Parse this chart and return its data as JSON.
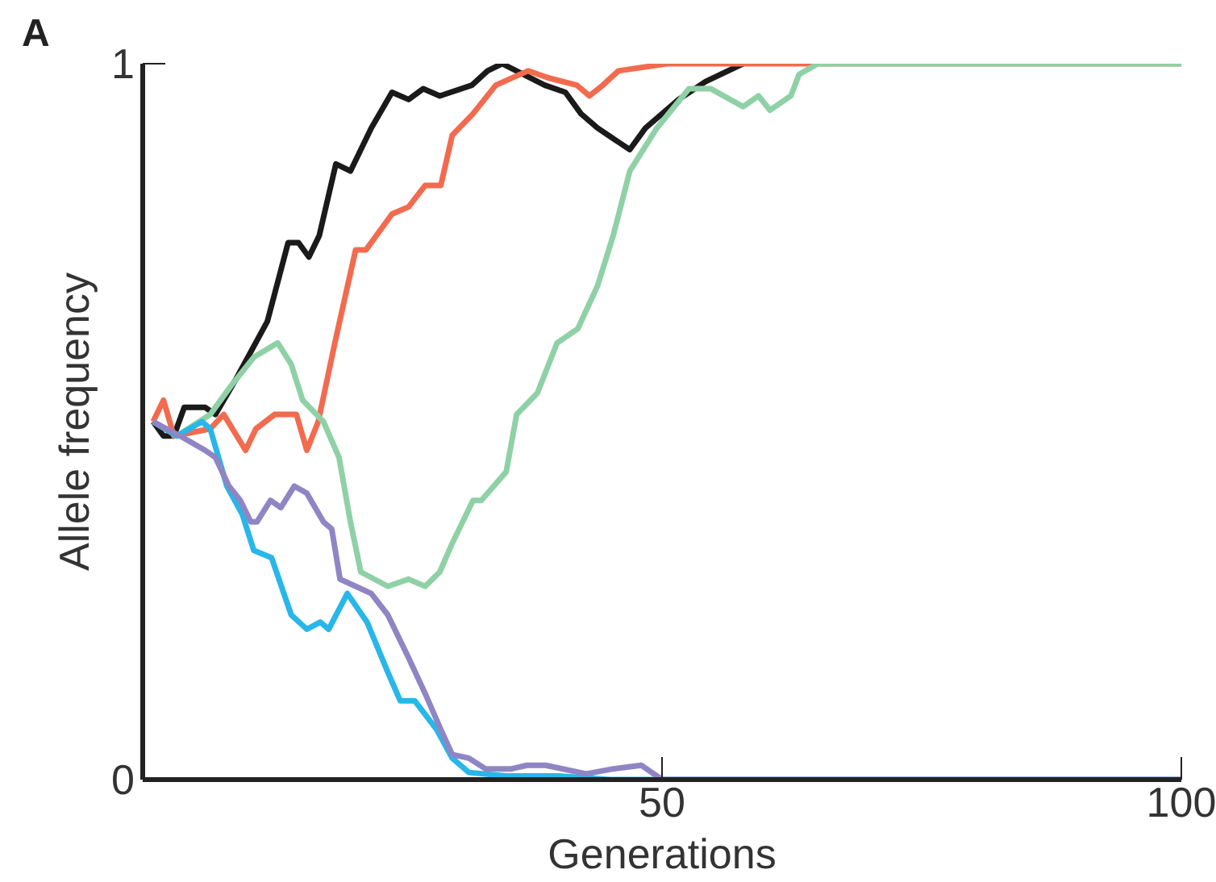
{
  "chart_data": {
    "type": "line",
    "title": "A",
    "xlabel": "Generations",
    "ylabel": "Allele frequency",
    "xlim": [
      0,
      100
    ],
    "ylim": [
      0,
      1
    ],
    "xticks": [
      50,
      100
    ],
    "yticks": [
      0,
      1
    ],
    "grid": false,
    "line_style": "solid",
    "series": [
      {
        "color": "#1a1a1a",
        "x": [
          1,
          2,
          3,
          4,
          6,
          7,
          9,
          12,
          14,
          15,
          16,
          17,
          18.6,
          20,
          22,
          24,
          25.6,
          27,
          28.6,
          31.7,
          33.2,
          34.6,
          38.7,
          40.7,
          42.2,
          43.8,
          46.9,
          48.4,
          51.6,
          54.2,
          57.8
        ],
        "values": [
          0.5,
          0.48,
          0.48,
          0.52,
          0.52,
          0.51,
          0.56,
          0.64,
          0.75,
          0.75,
          0.73,
          0.76,
          0.86,
          0.85,
          0.91,
          0.96,
          0.95,
          0.965,
          0.955,
          0.97,
          0.99,
          1.0,
          0.97,
          0.96,
          0.93,
          0.91,
          0.88,
          0.91,
          0.95,
          0.975,
          1.0
        ]
      },
      {
        "color": "#f26b4f",
        "x": [
          1,
          2,
          3,
          6.5,
          7.8,
          9.9,
          10.9,
          12.7,
          14.8,
          15.8,
          16.9,
          18.5,
          20.5,
          21.5,
          24,
          25.6,
          27.2,
          28.7,
          29.8,
          31.8,
          34,
          37.1,
          39.1,
          41.8,
          43,
          44.3,
          45.8,
          50.5,
          100
        ],
        "values": [
          0.5,
          0.53,
          0.48,
          0.49,
          0.51,
          0.46,
          0.49,
          0.51,
          0.51,
          0.46,
          0.5,
          0.61,
          0.74,
          0.74,
          0.79,
          0.8,
          0.83,
          0.83,
          0.9,
          0.93,
          0.97,
          0.99,
          0.98,
          0.97,
          0.955,
          0.97,
          0.99,
          1.0,
          1.0
        ]
      },
      {
        "color": "#8fd1a6",
        "x": [
          1,
          3.3,
          6.5,
          8.5,
          10.7,
          13,
          14.3,
          15.4,
          17.4,
          18.9,
          20,
          21,
          23.6,
          25.6,
          27.2,
          28.6,
          29.8,
          31.8,
          32.6,
          35,
          36,
          38,
          39.9,
          41.9,
          43.8,
          45.3,
          46.9,
          49.5,
          52.6,
          54.7,
          57.8,
          59.3,
          60.4,
          62.4,
          63.2,
          65,
          100
        ],
        "values": [
          0.5,
          0.48,
          0.51,
          0.55,
          0.59,
          0.61,
          0.58,
          0.53,
          0.5,
          0.45,
          0.36,
          0.29,
          0.27,
          0.28,
          0.27,
          0.29,
          0.33,
          0.39,
          0.39,
          0.43,
          0.51,
          0.54,
          0.61,
          0.63,
          0.69,
          0.76,
          0.85,
          0.91,
          0.965,
          0.965,
          0.94,
          0.955,
          0.935,
          0.955,
          0.985,
          1.0,
          1.0
        ]
      },
      {
        "color": "#29b6e8",
        "x": [
          1,
          3.3,
          5.7,
          6.5,
          8.1,
          9.6,
          10.7,
          12.4,
          14.3,
          15.8,
          17.1,
          17.9,
          19.7,
          21.6,
          23.6,
          24.8,
          26.2,
          28.3,
          29.8,
          31.4,
          35,
          40,
          45,
          100
        ],
        "values": [
          0.5,
          0.48,
          0.5,
          0.49,
          0.41,
          0.37,
          0.32,
          0.31,
          0.23,
          0.21,
          0.22,
          0.21,
          0.26,
          0.22,
          0.15,
          0.11,
          0.11,
          0.07,
          0.03,
          0.01,
          0.005,
          0.005,
          0,
          0
        ]
      },
      {
        "color": "#9085c4",
        "x": [
          1,
          3.6,
          6,
          7,
          8.3,
          9.4,
          10.4,
          11,
          12.3,
          13.3,
          14.6,
          15.8,
          17.4,
          18.2,
          19,
          20.5,
          22,
          23.6,
          25.6,
          27.2,
          28.7,
          29.8,
          31.4,
          33,
          35.5,
          37,
          38.8,
          42.7,
          45.3,
          48,
          50,
          100
        ],
        "values": [
          0.5,
          0.48,
          0.46,
          0.45,
          0.41,
          0.39,
          0.36,
          0.36,
          0.39,
          0.38,
          0.41,
          0.4,
          0.36,
          0.35,
          0.28,
          0.27,
          0.26,
          0.23,
          0.17,
          0.12,
          0.07,
          0.035,
          0.03,
          0.015,
          0.015,
          0.02,
          0.02,
          0.008,
          0.015,
          0.02,
          0,
          0
        ]
      }
    ]
  }
}
